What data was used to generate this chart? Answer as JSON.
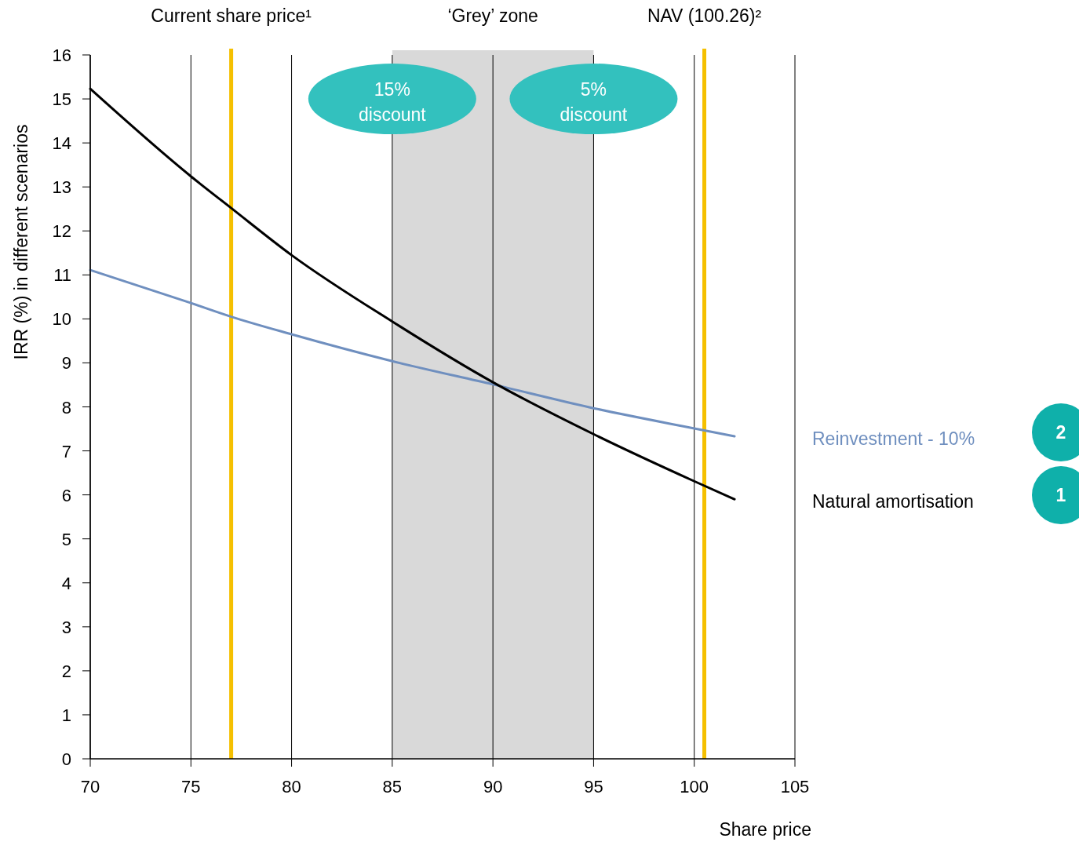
{
  "chart_data": {
    "type": "line",
    "xlabel": "Share price",
    "ylabel": "IRR (%) in different scenarios",
    "x": [
      70,
      75,
      77,
      80,
      85,
      90,
      95,
      100,
      102
    ],
    "series": [
      {
        "name": "Reinvestment - 10%",
        "color": "#6f8fbf",
        "values": [
          11.11,
          10.36,
          10.05,
          9.65,
          9.04,
          8.51,
          7.97,
          7.51,
          7.33
        ]
      },
      {
        "name": "Natural amortisation",
        "color": "#000000",
        "values": [
          15.23,
          13.24,
          12.52,
          11.45,
          9.94,
          8.56,
          7.38,
          6.31,
          5.9
        ]
      }
    ],
    "xlim": [
      70,
      105
    ],
    "xticks": [
      70,
      75,
      80,
      85,
      90,
      95,
      100,
      105
    ],
    "ylim": [
      0,
      16
    ],
    "yticks": [
      0,
      1,
      2,
      3,
      4,
      5,
      6,
      7,
      8,
      9,
      10,
      11,
      12,
      13,
      14,
      15,
      16
    ],
    "grid": "x",
    "legend": "right",
    "marker": "none",
    "line_style": "solid",
    "ref_lines": [
      {
        "axis": "x",
        "value": 77,
        "label": "Current share price¹",
        "color": "#f5c000"
      },
      {
        "axis": "x",
        "value": 100.5,
        "label": "NAV (100.26)²",
        "color": "#f5c000"
      }
    ],
    "bands": [
      {
        "axis": "x",
        "from": 85,
        "to": 95,
        "label": "‘Grey’ zone",
        "color": "#d9d9d9"
      }
    ],
    "annotations": [
      {
        "text": "15% discount",
        "x": 85,
        "y": 15
      },
      {
        "text": "5% discount",
        "x": 95,
        "y": 15
      },
      "2",
      "1"
    ]
  }
}
